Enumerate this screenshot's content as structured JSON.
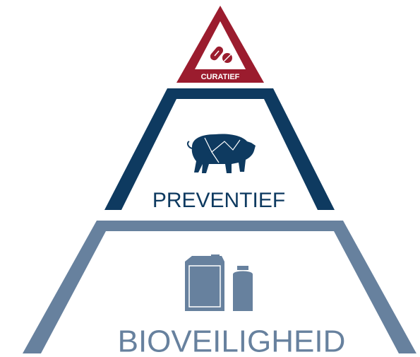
{
  "tiers": [
    {
      "label": "CURATIEF"
    },
    {
      "label": "PREVENTIEF"
    },
    {
      "label": "BIOVEILIGHEID"
    }
  ]
}
